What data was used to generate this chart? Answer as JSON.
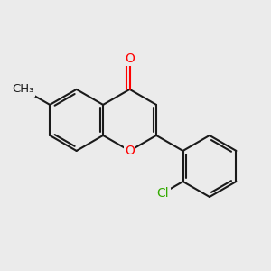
{
  "bg_color": "#ebebeb",
  "bond_color": "#1a1a1a",
  "o_color": "#ff0000",
  "cl_color": "#33aa00",
  "lw": 1.5,
  "figsize": [
    3.0,
    3.0
  ],
  "dpi": 100,
  "xlim": [
    -3.5,
    3.5
  ],
  "ylim": [
    -3.5,
    3.5
  ],
  "font_size": 10,
  "cl_font_size": 10,
  "methyl_font_size": 9.5
}
